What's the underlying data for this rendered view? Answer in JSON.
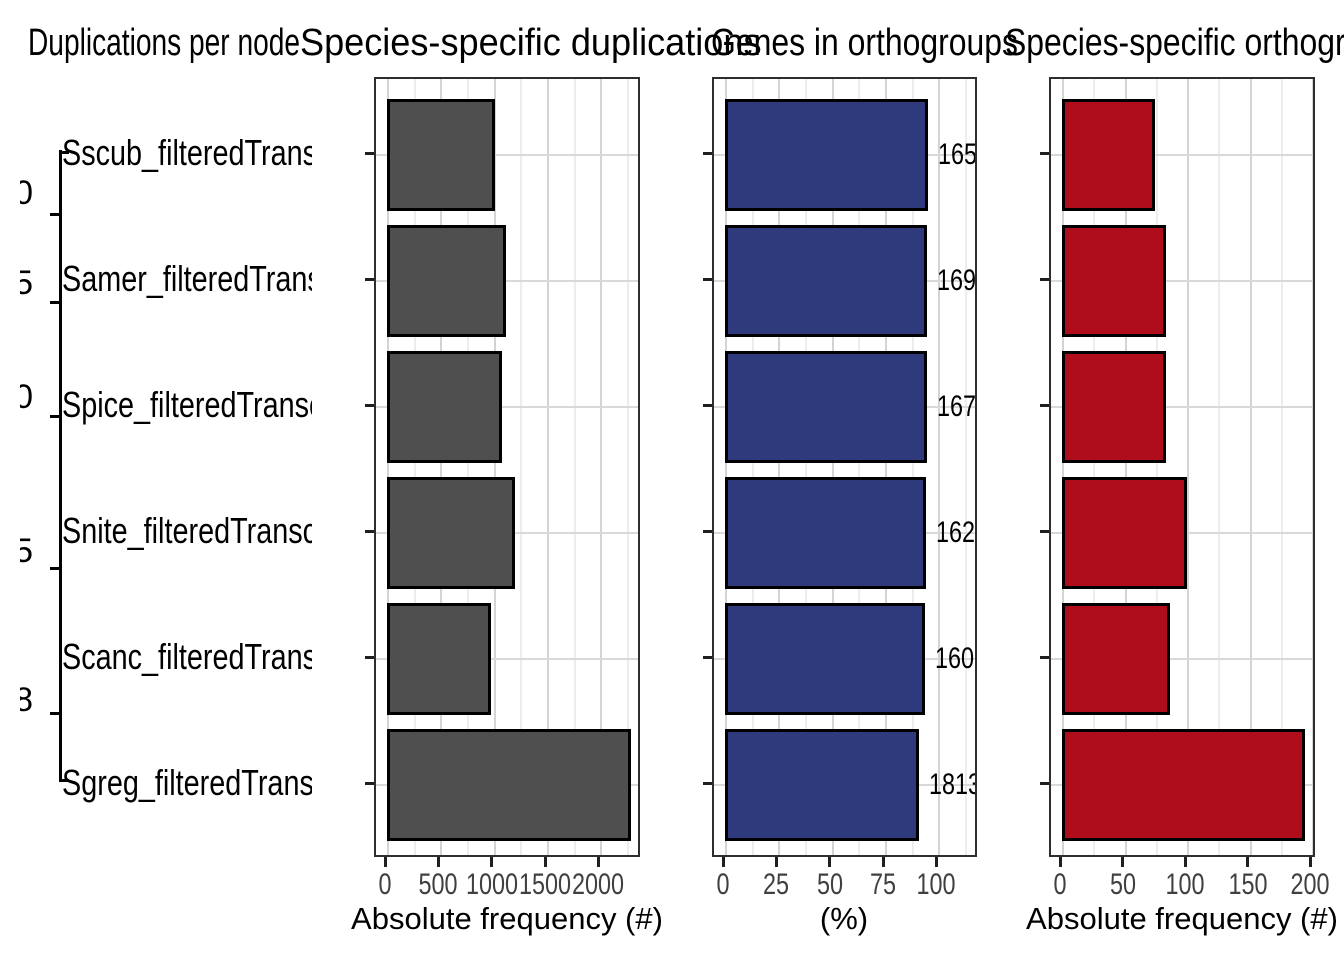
{
  "figure": {
    "background": "#ffffff",
    "titles": [
      {
        "text": "Duplications per node"
      },
      {
        "text": "Species-specific duplications"
      },
      {
        "text": "Genes in orthogroups"
      },
      {
        "text": "Species-specific orthogroups"
      }
    ]
  },
  "tree": {
    "species": [
      "Sscub_filteredTranscripts",
      "Samer_filteredTranscripts",
      "Spice_filteredTranscripts",
      "Snite_filteredTranscripts",
      "Scanc_filteredTranscripts",
      "Sgreg_filteredTranscripts"
    ],
    "node_labels": [
      "0",
      "5",
      "0",
      "5",
      "8"
    ]
  },
  "chart_data": [
    {
      "type": "bar",
      "orientation": "horizontal",
      "title": "Duplications per node",
      "categories": [
        "Sscub_filteredTranscripts",
        "Samer_filteredTranscripts",
        "Spice_filteredTranscripts",
        "Snite_filteredTranscripts",
        "Scanc_filteredTranscripts",
        "Sgreg_filteredTranscripts"
      ],
      "values": [
        1011,
        1114,
        1077,
        1198,
        974,
        2285
      ],
      "xlabel": "Absolute frequency (#)",
      "xticks": [
        "0",
        "500",
        "1000",
        "1500",
        "2000"
      ],
      "xlim": [
        0,
        2390
      ],
      "grid": true,
      "legend": false,
      "bar_color": "#4f4f4f",
      "bar_border": "#000000"
    },
    {
      "type": "bar",
      "orientation": "horizontal",
      "title": "Genes in orthogroups",
      "categories": [
        "Sscub_filteredTranscripts",
        "Samer_filteredTranscripts",
        "Spice_filteredTranscripts",
        "Snite_filteredTranscripts",
        "Scanc_filteredTranscripts",
        "Sgreg_filteredTranscripts"
      ],
      "values": [
        95,
        94.6,
        94.6,
        94.1,
        93.7,
        90.8
      ],
      "bar_labels": [
        "165",
        "169",
        "167",
        "162",
        "160",
        "1813"
      ],
      "xlabel": "(%)",
      "xticks": [
        "0",
        "25",
        "50",
        "75",
        "100"
      ],
      "xlim": [
        0,
        119
      ],
      "grid": true,
      "legend": false,
      "bar_color": "#2e3a7c",
      "bar_border": "#000000"
    },
    {
      "type": "bar",
      "orientation": "horizontal",
      "title": "Species-specific orthogroups",
      "categories": [
        "Sscub_filteredTranscripts",
        "Samer_filteredTranscripts",
        "Spice_filteredTranscripts",
        "Snite_filteredTranscripts",
        "Scanc_filteredTranscripts",
        "Sgreg_filteredTranscripts"
      ],
      "values": [
        74,
        83,
        83,
        100,
        86,
        194
      ],
      "xlabel": "Absolute frequency (#)",
      "xticks": [
        "0",
        "50",
        "100",
        "150",
        "200"
      ],
      "xlim": [
        0,
        204
      ],
      "grid": true,
      "legend": false,
      "bar_color": "#b00d1c",
      "bar_border": "#000000"
    }
  ]
}
